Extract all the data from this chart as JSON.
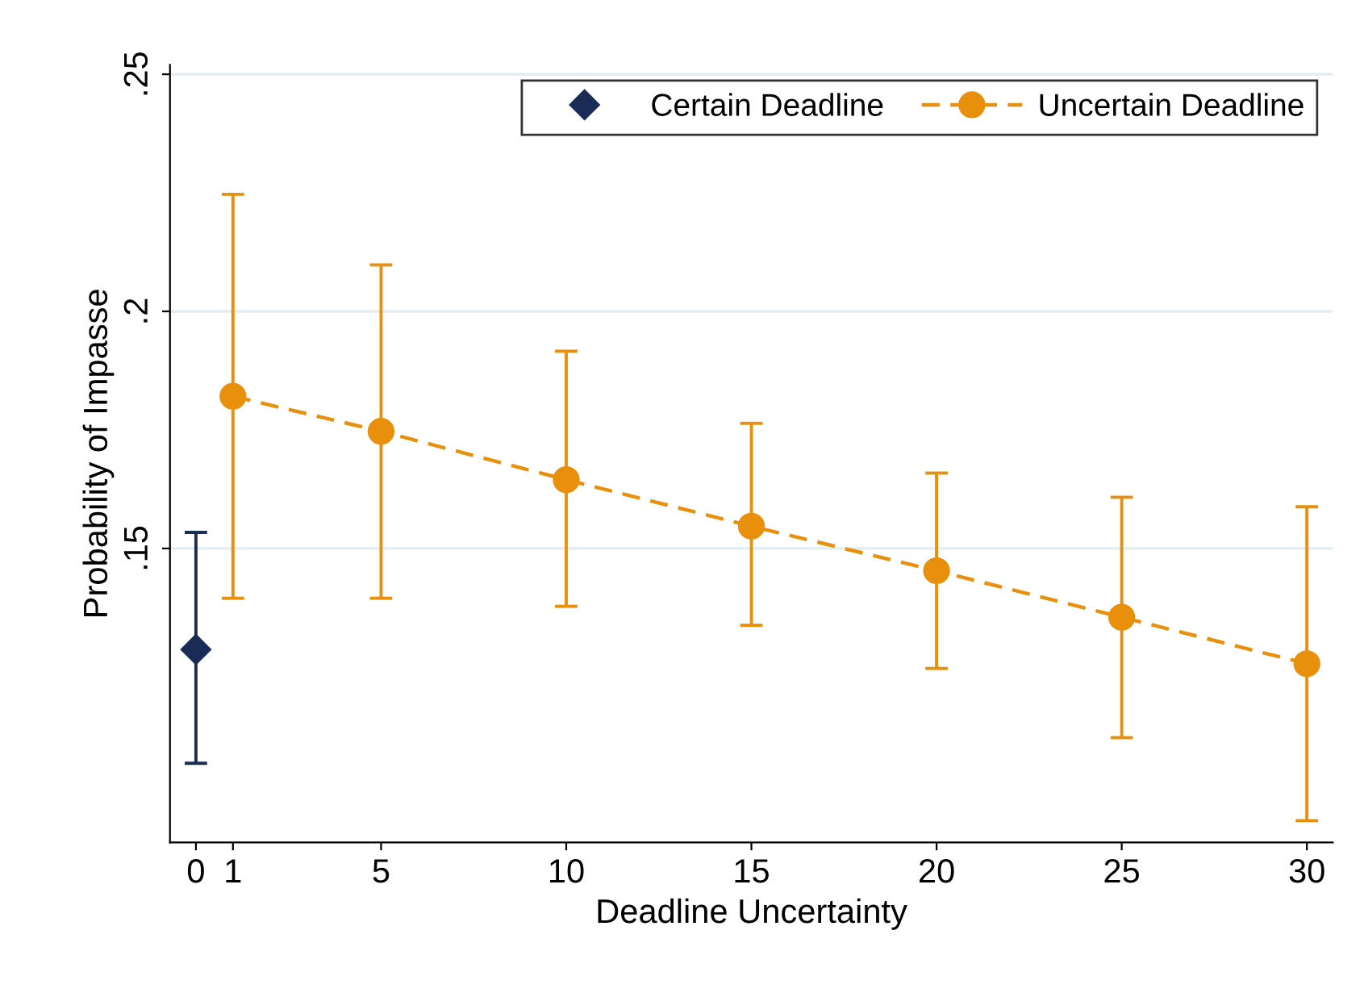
{
  "chart_data": {
    "type": "scatter",
    "xlabel": "Deadline Uncertainty",
    "ylabel": "Probability of Impasse",
    "xlim": [
      -0.7,
      30.7
    ],
    "xticks": [
      0,
      1,
      5,
      10,
      15,
      20,
      25,
      30
    ],
    "ylim": [
      0.088,
      0.252
    ],
    "yticks": [
      {
        "value": 0.15,
        "label": ".15"
      },
      {
        "value": 0.2,
        "label": ".2"
      },
      {
        "value": 0.25,
        "label": ".25"
      }
    ],
    "grid": "y",
    "legend": "top right",
    "series": [
      {
        "name": "Certain Deadline",
        "color": "#1a2b55",
        "marker": "diamond",
        "x": [
          0
        ],
        "values": [
          0.1287
        ],
        "errors": [
          [
            0.1047,
            0.1534
          ]
        ]
      },
      {
        "name": "Uncertain Deadline",
        "color": "#e8900c",
        "type": "line",
        "marker": "circle",
        "line_style": "dashed",
        "x": [
          1,
          5,
          10,
          15,
          20,
          25,
          30
        ],
        "values": [
          0.1821,
          0.1747,
          0.1645,
          0.1547,
          0.1453,
          0.1355,
          0.1257
        ],
        "errors": [
          [
            0.1395,
            0.2247
          ],
          [
            0.1395,
            0.2098
          ],
          [
            0.1378,
            0.1916
          ],
          [
            0.1338,
            0.1764
          ],
          [
            0.1247,
            0.1659
          ],
          [
            0.1101,
            0.1608
          ],
          [
            0.0926,
            0.1588
          ]
        ]
      }
    ]
  }
}
